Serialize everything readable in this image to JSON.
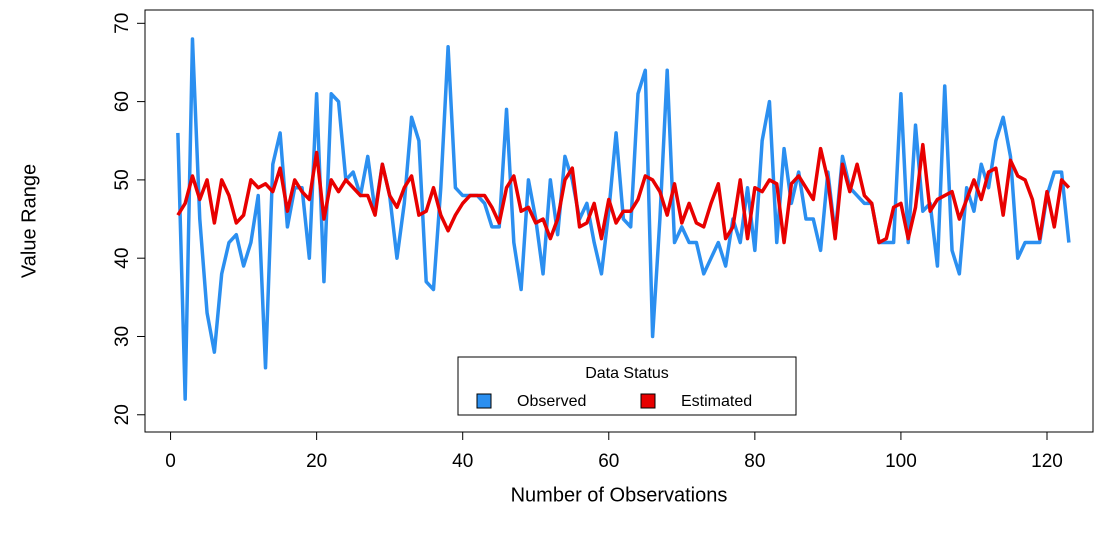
{
  "chart_data": {
    "type": "line",
    "x_label": "Number of Observations",
    "y_label": "Value Range",
    "legend_title": "Data Status",
    "legend_position": "bottom",
    "x": [
      1,
      2,
      3,
      4,
      5,
      6,
      7,
      8,
      9,
      10,
      11,
      12,
      13,
      14,
      15,
      16,
      17,
      18,
      19,
      20,
      21,
      22,
      23,
      24,
      25,
      26,
      27,
      28,
      29,
      30,
      31,
      32,
      33,
      34,
      35,
      36,
      37,
      38,
      39,
      40,
      41,
      42,
      43,
      44,
      45,
      46,
      47,
      48,
      49,
      50,
      51,
      52,
      53,
      54,
      55,
      56,
      57,
      58,
      59,
      60,
      61,
      62,
      63,
      64,
      65,
      66,
      67,
      68,
      69,
      70,
      71,
      72,
      73,
      74,
      75,
      76,
      77,
      78,
      79,
      80,
      81,
      82,
      83,
      84,
      85,
      86,
      87,
      88,
      89,
      90,
      91,
      92,
      93,
      94,
      95,
      96,
      97,
      98,
      99,
      100,
      101,
      102,
      103,
      104,
      105,
      106,
      107,
      108,
      109,
      110,
      111,
      112,
      113,
      114,
      115,
      116,
      117,
      118,
      119,
      120,
      121,
      122,
      123
    ],
    "series": [
      {
        "name": "Observed",
        "color": "#2b8ff0",
        "values": [
          56,
          22,
          68,
          45,
          33,
          28,
          38,
          42,
          43,
          39,
          42,
          48,
          26,
          52,
          56,
          44,
          49,
          49,
          40,
          61,
          37,
          61,
          60,
          50,
          51,
          48,
          53,
          46,
          52,
          48,
          40,
          47,
          58,
          55,
          37,
          36,
          49,
          67,
          49,
          48,
          48,
          48,
          47,
          44,
          44,
          59,
          42,
          36,
          50,
          45,
          38,
          50,
          43,
          53,
          50,
          45,
          47,
          42,
          38,
          46,
          56,
          45,
          44,
          61,
          64,
          30,
          45,
          64,
          42,
          44,
          42,
          42,
          38,
          40,
          42,
          39,
          45,
          42,
          49,
          41,
          55,
          60,
          42,
          54,
          47,
          51,
          45,
          45,
          41,
          51,
          43,
          53,
          49,
          48,
          47,
          47,
          42,
          42,
          42,
          61,
          42,
          57,
          46,
          47,
          39,
          62,
          41,
          38,
          49,
          46,
          52,
          49,
          55,
          58,
          53,
          40,
          42,
          42,
          42,
          48,
          51,
          51,
          42
        ]
      },
      {
        "name": "Estimated",
        "color": "#e80000",
        "values": [
          45.5,
          47,
          50.5,
          47.5,
          50,
          44.5,
          50,
          48,
          44.5,
          45.5,
          50,
          49,
          49.5,
          48.5,
          51.5,
          46,
          50,
          48.5,
          47.5,
          53.5,
          45,
          50,
          48.5,
          50,
          49,
          48,
          48,
          45.5,
          52,
          48,
          46.5,
          49,
          50.5,
          45.5,
          46,
          49,
          45.5,
          43.5,
          45.5,
          47,
          48,
          48,
          48,
          46.5,
          44.5,
          49,
          50.5,
          46,
          46.5,
          44.5,
          45,
          42.5,
          45,
          50,
          51.5,
          44,
          44.5,
          47,
          42.5,
          47.5,
          44.5,
          46,
          46,
          47.5,
          50.5,
          50,
          48.5,
          45.5,
          49.5,
          44.5,
          47,
          44.5,
          44,
          47,
          49.5,
          42.5,
          44,
          50,
          42.5,
          49,
          48.5,
          50,
          49.5,
          42,
          49.5,
          50.5,
          49,
          47.5,
          54,
          50,
          42.5,
          52,
          48.5,
          52,
          48,
          47,
          42,
          42.5,
          46.5,
          47,
          42.5,
          46.5,
          54.5,
          46,
          47.5,
          48,
          48.5,
          45,
          47.5,
          50,
          47.5,
          51,
          51.5,
          45.5,
          52.5,
          50.5,
          50,
          47.5,
          42.5,
          48.5,
          44,
          50,
          49
        ]
      }
    ],
    "xlim": [
      -3.5,
      126.3
    ],
    "ylim": [
      17.8,
      71.7
    ],
    "xticks": [
      0,
      20,
      40,
      60,
      80,
      100,
      120
    ],
    "yticks": [
      20,
      30,
      40,
      50,
      60,
      70
    ]
  }
}
